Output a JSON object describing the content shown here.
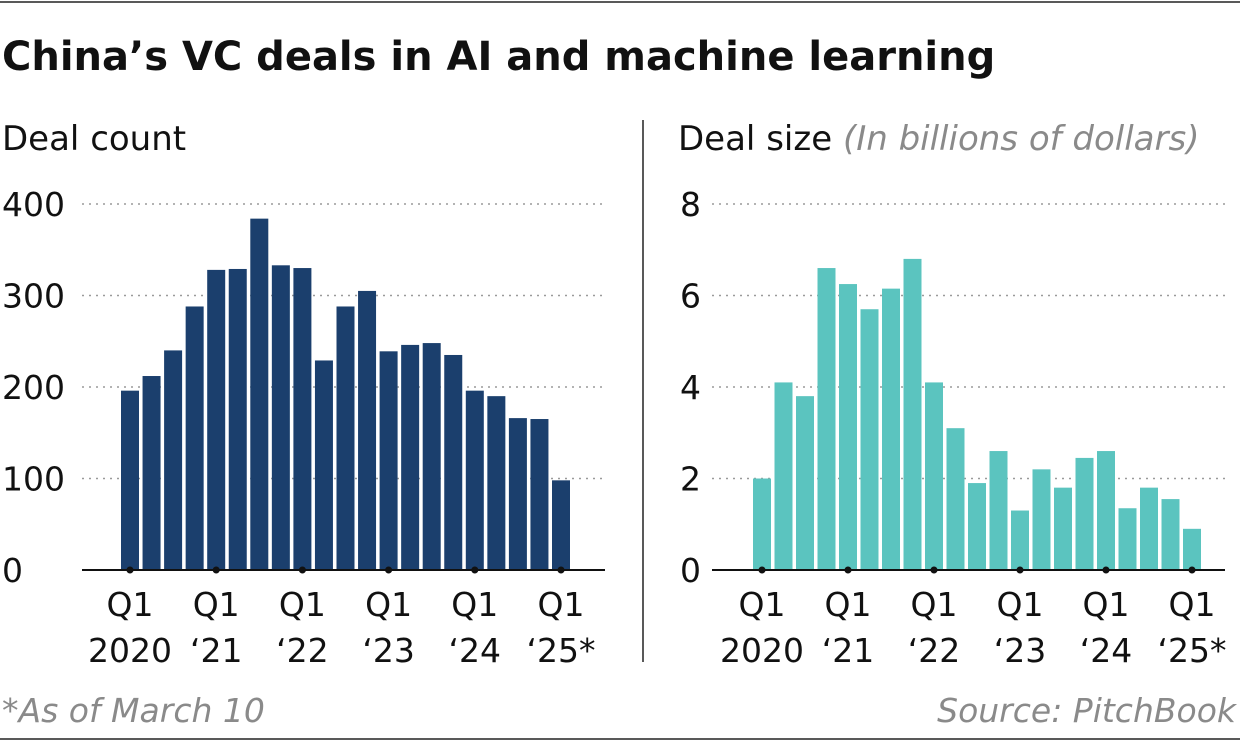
{
  "title": "China’s VC deals in AI and machine learning",
  "footnote": "*As of March 10",
  "source": "Source: PitchBook",
  "chart_data": [
    {
      "type": "bar",
      "title": "Deal count",
      "categories": [
        "Q1 2020",
        null,
        null,
        null,
        "Q1 ‘21",
        null,
        null,
        null,
        "Q1 ‘22",
        null,
        null,
        null,
        "Q1 ‘23",
        null,
        null,
        null,
        "Q1 ‘24",
        null,
        null,
        null,
        "Q1 ‘25*"
      ],
      "values": [
        196,
        212,
        240,
        288,
        328,
        329,
        384,
        333,
        330,
        229,
        288,
        305,
        239,
        246,
        248,
        235,
        196,
        190,
        166,
        165,
        98
      ],
      "color": "#1b3f6d",
      "ylim": [
        0,
        400
      ],
      "yticks": [
        0,
        100,
        200,
        300,
        400
      ],
      "grid": true
    },
    {
      "type": "bar",
      "title": "Deal size",
      "subtitle": "(In billions of dollars)",
      "categories": [
        "Q1 2020",
        null,
        null,
        null,
        "Q1 ‘21",
        null,
        null,
        null,
        "Q1 ‘22",
        null,
        null,
        null,
        "Q1 ‘23",
        null,
        null,
        null,
        "Q1 ‘24",
        null,
        null,
        null,
        "Q1 ‘25*"
      ],
      "values": [
        2.0,
        4.1,
        3.8,
        6.6,
        6.25,
        5.7,
        6.15,
        6.8,
        4.1,
        3.1,
        1.9,
        2.6,
        1.3,
        2.2,
        1.8,
        2.45,
        2.6,
        1.35,
        1.8,
        1.55,
        0.9
      ],
      "color": "#5bc4bf",
      "ylim": [
        0,
        8
      ],
      "yticks": [
        0,
        2,
        4,
        6,
        8
      ],
      "grid": true
    }
  ]
}
